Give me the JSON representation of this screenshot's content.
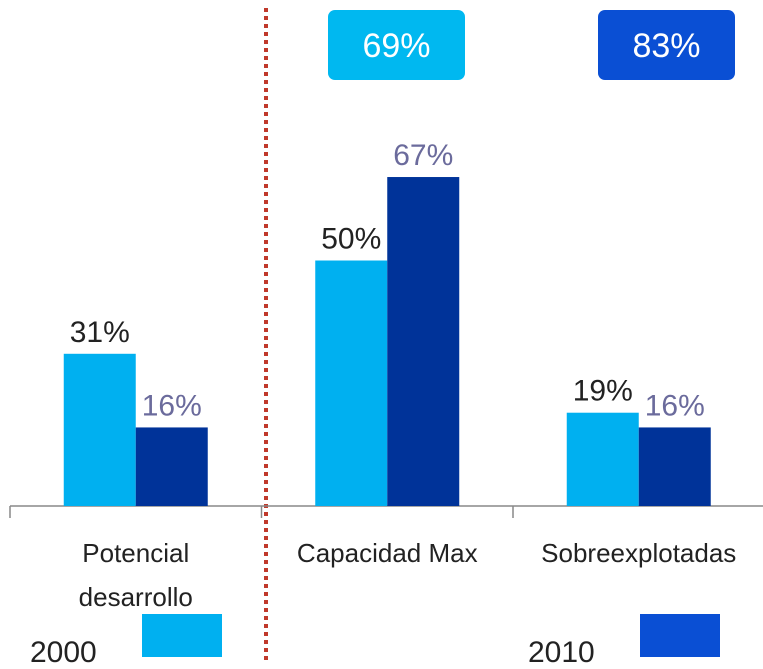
{
  "chart_data": {
    "type": "bar",
    "categories": [
      [
        "Potencial",
        "desarrollo"
      ],
      [
        "Capacidad Max"
      ],
      [
        "Sobreexplotadas"
      ]
    ],
    "series": [
      {
        "name": "2000",
        "color": "#00b0f0",
        "label_color": "#222222",
        "values": [
          31,
          50,
          19
        ],
        "value_labels": [
          "31%",
          "50%",
          "19%"
        ]
      },
      {
        "name": "2010",
        "color": "#003399",
        "label_color": "#6b6b9c",
        "values": [
          16,
          67,
          16
        ],
        "value_labels": [
          "16%",
          "67%",
          "16%"
        ]
      }
    ],
    "ylim": [
      0,
      100
    ],
    "annotations": [
      {
        "text": "69%",
        "color": "#00b8f0"
      },
      {
        "text": "83%",
        "color": "#0a4fd4"
      }
    ]
  }
}
